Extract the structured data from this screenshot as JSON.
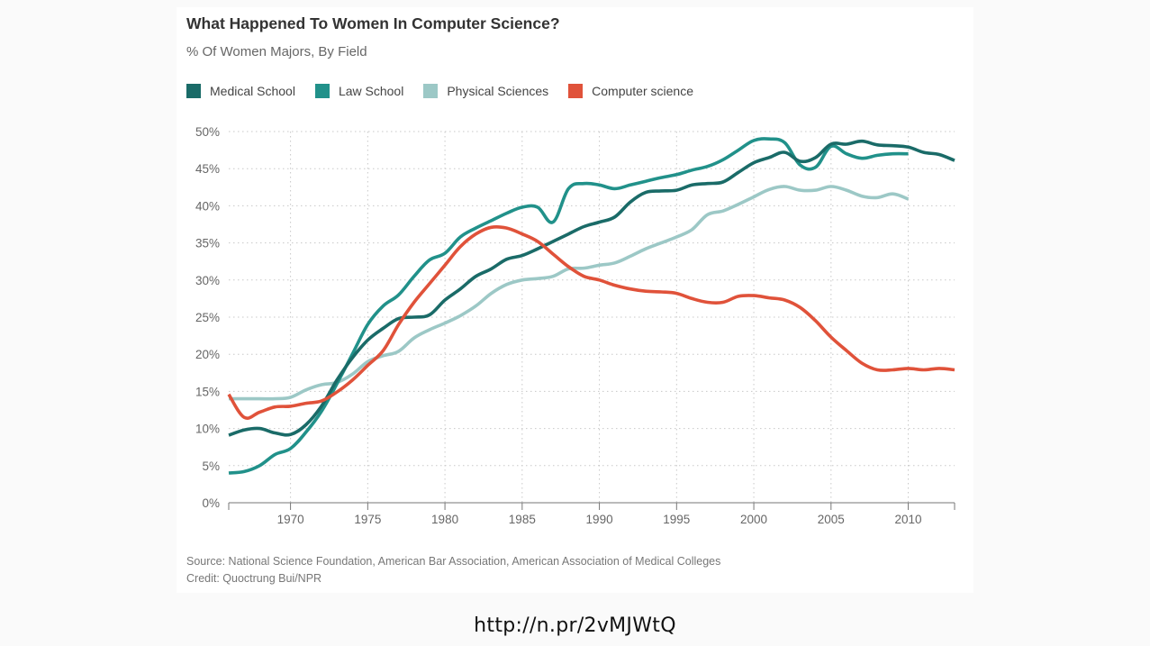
{
  "page": {
    "url_caption": "http://n.pr/2vMJWtQ"
  },
  "chart_data": {
    "type": "line",
    "title": "What Happened To Women In Computer Science?",
    "subtitle": "% Of Women Majors, By Field",
    "xlabel": "",
    "ylabel": "",
    "xlim": [
      1966,
      2013
    ],
    "ylim": [
      0,
      50
    ],
    "x_ticks": [
      1970,
      1975,
      1980,
      1985,
      1990,
      1995,
      2000,
      2005,
      2010
    ],
    "x_tick_labels": [
      "1970",
      "1975",
      "1980",
      "1985",
      "1990",
      "1995",
      "2000",
      "2005",
      "2010"
    ],
    "y_ticks": [
      0,
      5,
      10,
      15,
      20,
      25,
      30,
      35,
      40,
      45,
      50
    ],
    "y_tick_labels": [
      "0%",
      "5%",
      "10%",
      "15%",
      "20%",
      "25%",
      "30%",
      "35%",
      "40%",
      "45%",
      "50%"
    ],
    "grid": true,
    "legend_position": "top-left",
    "source": "Source: National Science Foundation, American Bar Association, American Association of Medical Colleges",
    "credit": "Credit: Quoctrung Bui/NPR",
    "series": [
      {
        "name": "Medical School",
        "color": "#1a6b68",
        "x": [
          1966,
          1967,
          1968,
          1969,
          1970,
          1971,
          1972,
          1973,
          1974,
          1975,
          1976,
          1977,
          1978,
          1979,
          1980,
          1981,
          1982,
          1983,
          1984,
          1985,
          1986,
          1987,
          1988,
          1989,
          1990,
          1991,
          1992,
          1993,
          1994,
          1995,
          1996,
          1997,
          1998,
          1999,
          2000,
          2001,
          2002,
          2003,
          2004,
          2005,
          2006,
          2007,
          2008,
          2009,
          2010,
          2011,
          2012,
          2013
        ],
        "values": [
          9.1,
          9.8,
          10.0,
          9.4,
          9.2,
          10.5,
          13.0,
          16.5,
          19.5,
          21.9,
          23.5,
          24.8,
          25.0,
          25.3,
          27.3,
          28.8,
          30.5,
          31.5,
          32.8,
          33.3,
          34.2,
          35.2,
          36.2,
          37.2,
          37.8,
          38.5,
          40.5,
          41.8,
          42.0,
          42.1,
          42.8,
          43.0,
          43.2,
          44.5,
          45.8,
          46.5,
          47.2,
          46.0,
          46.5,
          48.3,
          48.3,
          48.7,
          48.2,
          48.1,
          47.9,
          47.2,
          46.9,
          46.1
        ]
      },
      {
        "name": "Law School",
        "color": "#21918a",
        "x": [
          1966,
          1967,
          1968,
          1969,
          1970,
          1971,
          1972,
          1973,
          1974,
          1975,
          1976,
          1977,
          1978,
          1979,
          1980,
          1981,
          1982,
          1983,
          1984,
          1985,
          1986,
          1987,
          1988,
          1989,
          1990,
          1991,
          1992,
          1993,
          1994,
          1995,
          1996,
          1997,
          1998,
          1999,
          2000,
          2001,
          2002,
          2003,
          2004,
          2005,
          2006,
          2007,
          2008,
          2009,
          2010
        ],
        "values": [
          4.0,
          4.2,
          5.0,
          6.5,
          7.3,
          9.5,
          12.3,
          16.0,
          20.0,
          24.0,
          26.5,
          28.0,
          30.5,
          32.7,
          33.6,
          35.8,
          37.0,
          38.0,
          39.0,
          39.8,
          39.8,
          37.8,
          42.3,
          43.0,
          42.8,
          42.3,
          42.8,
          43.3,
          43.8,
          44.2,
          44.8,
          45.3,
          46.2,
          47.5,
          48.8,
          49.0,
          48.5,
          45.5,
          45.2,
          48.0,
          47.0,
          46.4,
          46.8,
          47.0,
          47.0
        ]
      },
      {
        "name": "Physical Sciences",
        "color": "#9cc8c6",
        "x": [
          1966,
          1967,
          1968,
          1969,
          1970,
          1971,
          1972,
          1973,
          1974,
          1975,
          1976,
          1977,
          1978,
          1979,
          1980,
          1981,
          1982,
          1983,
          1984,
          1985,
          1986,
          1987,
          1988,
          1989,
          1990,
          1991,
          1992,
          1993,
          1994,
          1995,
          1996,
          1997,
          1998,
          1999,
          2000,
          2001,
          2002,
          2003,
          2004,
          2005,
          2006,
          2007,
          2008,
          2009,
          2010
        ],
        "values": [
          14.0,
          14.0,
          14.0,
          14.0,
          14.2,
          15.2,
          15.9,
          16.2,
          17.3,
          19.0,
          19.8,
          20.4,
          22.2,
          23.3,
          24.2,
          25.2,
          26.5,
          28.2,
          29.4,
          30.0,
          30.2,
          30.5,
          31.5,
          31.6,
          32.0,
          32.3,
          33.2,
          34.2,
          35.0,
          35.8,
          36.8,
          38.8,
          39.3,
          40.2,
          41.2,
          42.2,
          42.6,
          42.1,
          42.1,
          42.6,
          42.1,
          41.3,
          41.1,
          41.6,
          40.9
        ]
      },
      {
        "name": "Computer science",
        "color": "#e0523a",
        "x": [
          1966,
          1967,
          1968,
          1969,
          1970,
          1971,
          1972,
          1973,
          1974,
          1975,
          1976,
          1977,
          1978,
          1979,
          1980,
          1981,
          1982,
          1983,
          1984,
          1985,
          1986,
          1987,
          1988,
          1989,
          1990,
          1991,
          1992,
          1993,
          1994,
          1995,
          1996,
          1997,
          1998,
          1999,
          2000,
          2001,
          2002,
          2003,
          2004,
          2005,
          2006,
          2007,
          2008,
          2009,
          2010,
          2011,
          2012,
          2013
        ],
        "values": [
          14.6,
          11.5,
          12.2,
          12.9,
          13.0,
          13.4,
          13.7,
          14.9,
          16.5,
          18.5,
          20.5,
          24.0,
          27.0,
          29.5,
          32.0,
          34.5,
          36.2,
          37.1,
          37.0,
          36.2,
          35.2,
          33.5,
          31.8,
          30.5,
          30.0,
          29.3,
          28.8,
          28.5,
          28.4,
          28.2,
          27.5,
          27.0,
          27.0,
          27.8,
          27.9,
          27.6,
          27.3,
          26.3,
          24.5,
          22.3,
          20.5,
          18.8,
          17.9,
          17.9,
          18.1,
          17.9,
          18.1,
          17.9
        ]
      }
    ]
  }
}
